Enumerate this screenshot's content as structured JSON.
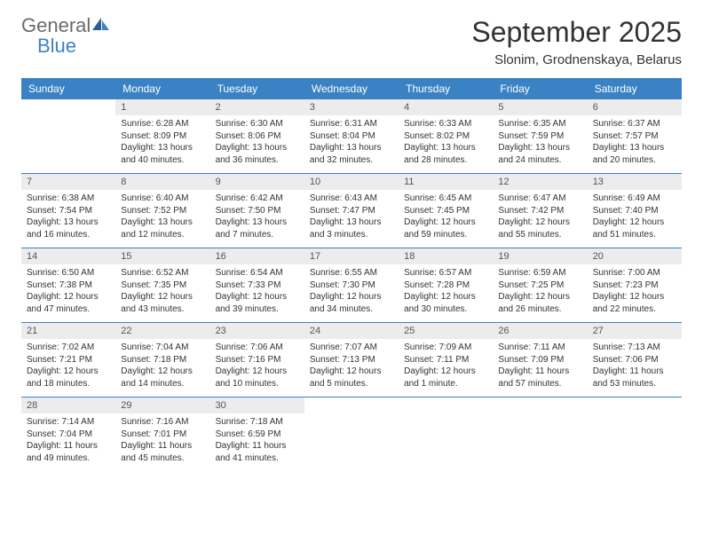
{
  "brand": {
    "general": "General",
    "blue": "Blue"
  },
  "title": "September 2025",
  "location": "Slonim, Grodnenskaya, Belarus",
  "colors": {
    "header_bg": "#3b82c4",
    "header_text": "#ffffff",
    "daynum_bg": "#ececec",
    "border": "#3b82c4",
    "logo_gray": "#6b6b6b",
    "logo_blue": "#3b82c4"
  },
  "dow": [
    "Sunday",
    "Monday",
    "Tuesday",
    "Wednesday",
    "Thursday",
    "Friday",
    "Saturday"
  ],
  "weeks": [
    [
      null,
      {
        "n": "1",
        "sr": "6:28 AM",
        "ss": "8:09 PM",
        "dl": "13 hours and 40 minutes."
      },
      {
        "n": "2",
        "sr": "6:30 AM",
        "ss": "8:06 PM",
        "dl": "13 hours and 36 minutes."
      },
      {
        "n": "3",
        "sr": "6:31 AM",
        "ss": "8:04 PM",
        "dl": "13 hours and 32 minutes."
      },
      {
        "n": "4",
        "sr": "6:33 AM",
        "ss": "8:02 PM",
        "dl": "13 hours and 28 minutes."
      },
      {
        "n": "5",
        "sr": "6:35 AM",
        "ss": "7:59 PM",
        "dl": "13 hours and 24 minutes."
      },
      {
        "n": "6",
        "sr": "6:37 AM",
        "ss": "7:57 PM",
        "dl": "13 hours and 20 minutes."
      }
    ],
    [
      {
        "n": "7",
        "sr": "6:38 AM",
        "ss": "7:54 PM",
        "dl": "13 hours and 16 minutes."
      },
      {
        "n": "8",
        "sr": "6:40 AM",
        "ss": "7:52 PM",
        "dl": "13 hours and 12 minutes."
      },
      {
        "n": "9",
        "sr": "6:42 AM",
        "ss": "7:50 PM",
        "dl": "13 hours and 7 minutes."
      },
      {
        "n": "10",
        "sr": "6:43 AM",
        "ss": "7:47 PM",
        "dl": "13 hours and 3 minutes."
      },
      {
        "n": "11",
        "sr": "6:45 AM",
        "ss": "7:45 PM",
        "dl": "12 hours and 59 minutes."
      },
      {
        "n": "12",
        "sr": "6:47 AM",
        "ss": "7:42 PM",
        "dl": "12 hours and 55 minutes."
      },
      {
        "n": "13",
        "sr": "6:49 AM",
        "ss": "7:40 PM",
        "dl": "12 hours and 51 minutes."
      }
    ],
    [
      {
        "n": "14",
        "sr": "6:50 AM",
        "ss": "7:38 PM",
        "dl": "12 hours and 47 minutes."
      },
      {
        "n": "15",
        "sr": "6:52 AM",
        "ss": "7:35 PM",
        "dl": "12 hours and 43 minutes."
      },
      {
        "n": "16",
        "sr": "6:54 AM",
        "ss": "7:33 PM",
        "dl": "12 hours and 39 minutes."
      },
      {
        "n": "17",
        "sr": "6:55 AM",
        "ss": "7:30 PM",
        "dl": "12 hours and 34 minutes."
      },
      {
        "n": "18",
        "sr": "6:57 AM",
        "ss": "7:28 PM",
        "dl": "12 hours and 30 minutes."
      },
      {
        "n": "19",
        "sr": "6:59 AM",
        "ss": "7:25 PM",
        "dl": "12 hours and 26 minutes."
      },
      {
        "n": "20",
        "sr": "7:00 AM",
        "ss": "7:23 PM",
        "dl": "12 hours and 22 minutes."
      }
    ],
    [
      {
        "n": "21",
        "sr": "7:02 AM",
        "ss": "7:21 PM",
        "dl": "12 hours and 18 minutes."
      },
      {
        "n": "22",
        "sr": "7:04 AM",
        "ss": "7:18 PM",
        "dl": "12 hours and 14 minutes."
      },
      {
        "n": "23",
        "sr": "7:06 AM",
        "ss": "7:16 PM",
        "dl": "12 hours and 10 minutes."
      },
      {
        "n": "24",
        "sr": "7:07 AM",
        "ss": "7:13 PM",
        "dl": "12 hours and 5 minutes."
      },
      {
        "n": "25",
        "sr": "7:09 AM",
        "ss": "7:11 PM",
        "dl": "12 hours and 1 minute."
      },
      {
        "n": "26",
        "sr": "7:11 AM",
        "ss": "7:09 PM",
        "dl": "11 hours and 57 minutes."
      },
      {
        "n": "27",
        "sr": "7:13 AM",
        "ss": "7:06 PM",
        "dl": "11 hours and 53 minutes."
      }
    ],
    [
      {
        "n": "28",
        "sr": "7:14 AM",
        "ss": "7:04 PM",
        "dl": "11 hours and 49 minutes."
      },
      {
        "n": "29",
        "sr": "7:16 AM",
        "ss": "7:01 PM",
        "dl": "11 hours and 45 minutes."
      },
      {
        "n": "30",
        "sr": "7:18 AM",
        "ss": "6:59 PM",
        "dl": "11 hours and 41 minutes."
      },
      null,
      null,
      null,
      null
    ]
  ],
  "labels": {
    "sunrise": "Sunrise:",
    "sunset": "Sunset:",
    "daylight": "Daylight:"
  }
}
